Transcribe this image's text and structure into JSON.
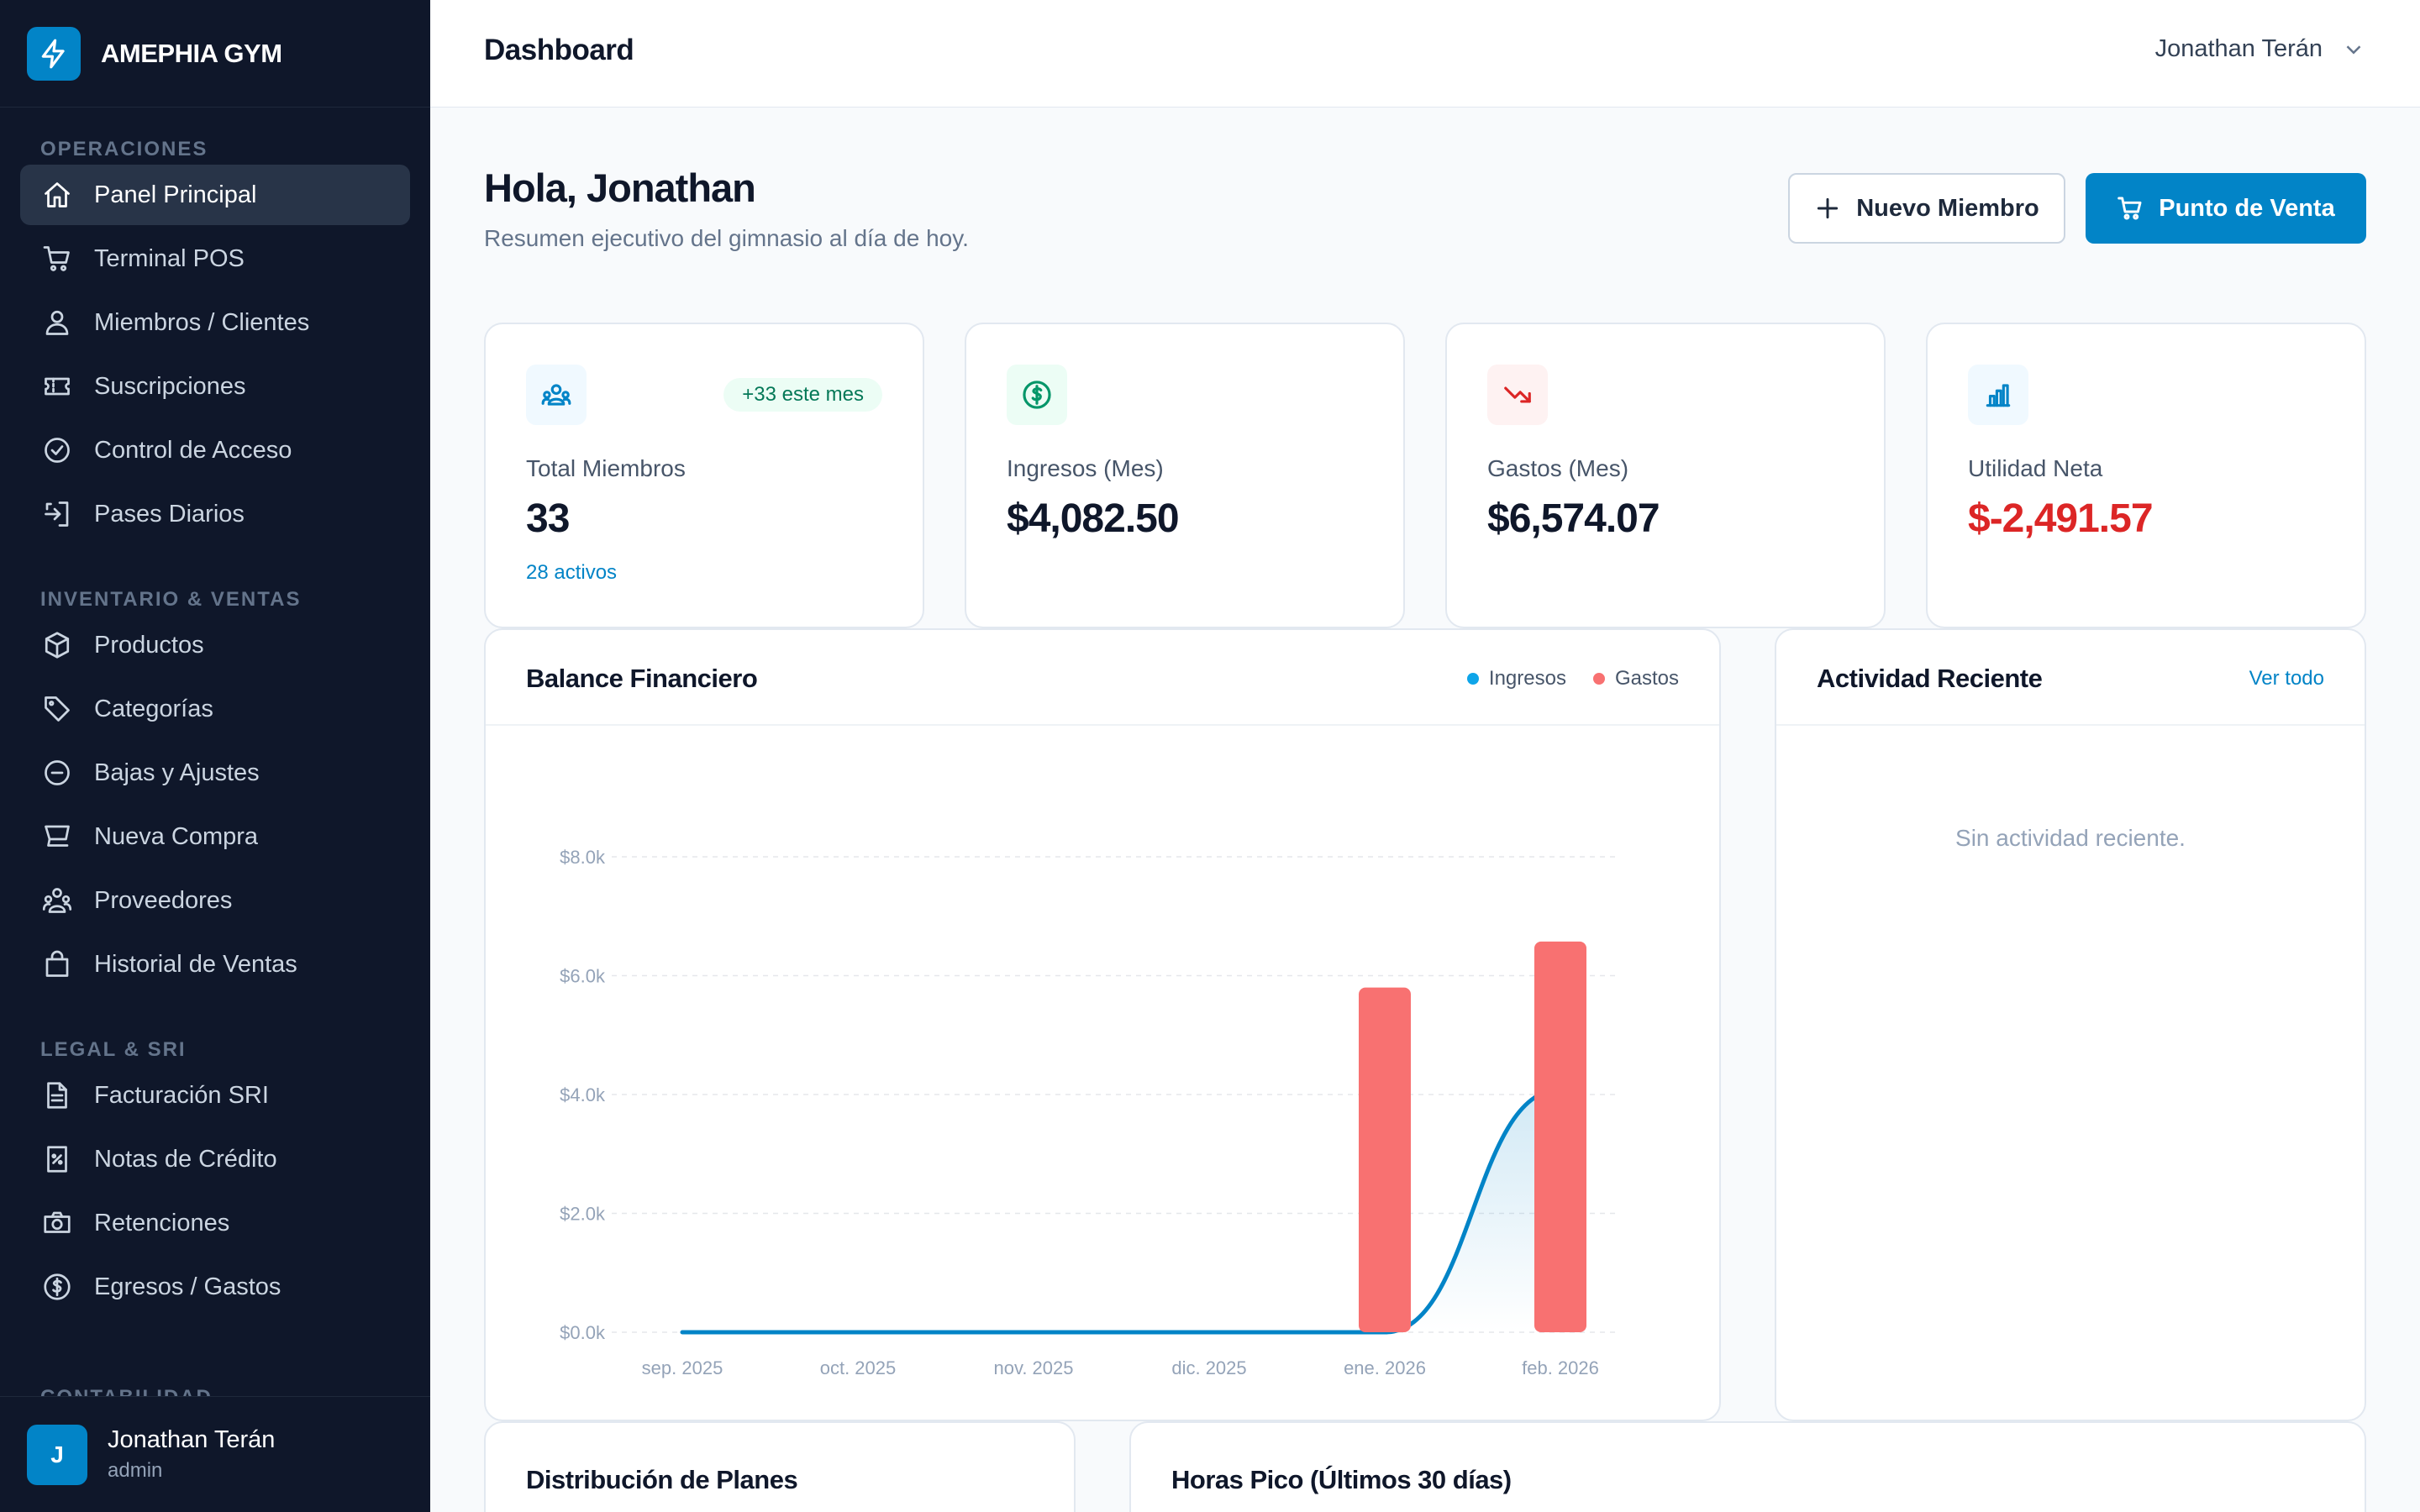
{
  "brand": {
    "name": "AMEPHIA GYM"
  },
  "sidebar": {
    "sections": [
      {
        "title": "OPERACIONES",
        "items": [
          {
            "label": "Panel Principal",
            "icon": "home-icon",
            "active": true
          },
          {
            "label": "Terminal POS",
            "icon": "cart-icon"
          },
          {
            "label": "Miembros / Clientes",
            "icon": "users-icon"
          },
          {
            "label": "Suscripciones",
            "icon": "ticket-icon"
          },
          {
            "label": "Control de Acceso",
            "icon": "check-circle-icon"
          },
          {
            "label": "Pases Diarios",
            "icon": "door-enter-icon"
          }
        ]
      },
      {
        "title": "INVENTARIO & VENTAS",
        "items": [
          {
            "label": "Productos",
            "icon": "box-icon"
          },
          {
            "label": "Categorías",
            "icon": "tag-icon"
          },
          {
            "label": "Bajas y Ajustes",
            "icon": "minus-circle-icon"
          },
          {
            "label": "Nueva Compra",
            "icon": "basket-icon"
          },
          {
            "label": "Proveedores",
            "icon": "supplier-icon"
          },
          {
            "label": "Historial de Ventas",
            "icon": "bag-icon"
          }
        ]
      },
      {
        "title": "LEGAL & SRI",
        "items": [
          {
            "label": "Facturación SRI",
            "icon": "document-icon"
          },
          {
            "label": "Notas de Crédito",
            "icon": "receipt-icon"
          },
          {
            "label": "Retenciones",
            "icon": "camera-icon"
          },
          {
            "label": "Egresos / Gastos",
            "icon": "dollar-circle-icon"
          }
        ]
      }
    ],
    "next_section_peek": "CONTABILIDAD",
    "user": {
      "initial": "J",
      "name": "Jonathan Terán",
      "role": "admin"
    }
  },
  "topbar": {
    "title": "Dashboard",
    "user_name": "Jonathan Terán"
  },
  "header": {
    "greeting": "Hola, Jonathan",
    "subtitle": "Resumen ejecutivo del gimnasio al día de hoy.",
    "new_member_label": "Nuevo Miembro",
    "pos_label": "Punto de Venta"
  },
  "stats": {
    "members": {
      "label": "Total Miembros",
      "value": "33",
      "badge": "+33 este mes",
      "sub": "28 activos"
    },
    "income": {
      "label": "Ingresos (Mes)",
      "value": "$4,082.50"
    },
    "expenses": {
      "label": "Gastos (Mes)",
      "value": "$6,574.07"
    },
    "net": {
      "label": "Utilidad Neta",
      "value": "$-2,491.57"
    }
  },
  "colors": {
    "accent": "#0284c7",
    "income": "#0284c7",
    "expenses": "#f87171",
    "negative": "#dc2626"
  },
  "balance": {
    "title": "Balance Financiero",
    "legend_income": "Ingresos",
    "legend_expenses": "Gastos"
  },
  "chart_data": {
    "type": "bar",
    "categories": [
      "sep. 2025",
      "oct. 2025",
      "nov. 2025",
      "dic. 2025",
      "ene. 2026",
      "feb. 2026"
    ],
    "series": [
      {
        "name": "Ingresos",
        "type": "area",
        "values": [
          0,
          0,
          0,
          0,
          0,
          4082.5
        ]
      },
      {
        "name": "Gastos",
        "type": "bar",
        "values": [
          null,
          null,
          null,
          null,
          5800,
          6574.07
        ]
      }
    ],
    "y_ticks": [
      "$0.0k",
      "$2.0k",
      "$4.0k",
      "$6.0k",
      "$8.0k"
    ],
    "ylim": [
      0,
      8000
    ],
    "grid": true,
    "legend": "top-right"
  },
  "activity": {
    "title": "Actividad Reciente",
    "link": "Ver todo",
    "empty": "Sin actividad reciente."
  },
  "bottom": {
    "plans_title": "Distribución de Planes",
    "peak_title": "Horas Pico (Últimos 30 días)"
  }
}
